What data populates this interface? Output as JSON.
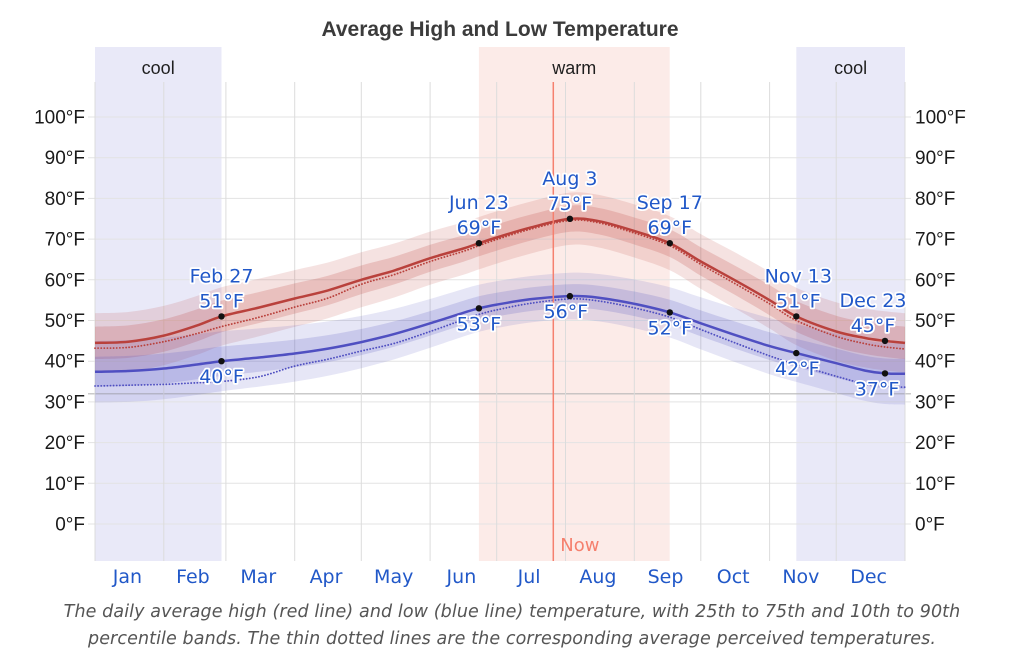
{
  "title": "Average High and Low Temperature",
  "caption": {
    "line1": "The daily average high (red line) and low (blue line) temperature, with 25th to 75th and 10th to 90th",
    "line2": "percentile bands. The thin dotted lines are the corresponding average perceived temperatures."
  },
  "chart_data": {
    "type": "line",
    "title": "Average High and Low Temperature",
    "y_axis": {
      "tick_temps": [
        0,
        10,
        20,
        30,
        40,
        50,
        60,
        70,
        80,
        90,
        100
      ],
      "unit": "°F",
      "freezing_value": 32
    },
    "x_axis": {
      "months": [
        "Jan",
        "Feb",
        "Mar",
        "Apr",
        "May",
        "Jun",
        "Jul",
        "Aug",
        "Sep",
        "Oct",
        "Nov",
        "Dec"
      ]
    },
    "days": [
      0,
      15,
      31,
      46,
      57,
      74,
      90,
      105,
      120,
      135,
      151,
      166,
      173,
      181,
      196,
      214,
      227,
      243,
      259,
      273,
      288,
      304,
      316,
      334,
      347,
      356,
      365
    ],
    "series": [
      {
        "name": "average high",
        "style": "solid",
        "color": "#b9413c",
        "values": [
          44.5,
          44.8,
          46.3,
          48.8,
          51,
          53.2,
          55.4,
          57.4,
          60,
          62.3,
          65.3,
          67.7,
          69,
          70.4,
          72.8,
          75,
          74.4,
          72,
          69,
          64.5,
          60,
          55,
          51,
          47.3,
          45.7,
          45,
          44.5
        ]
      },
      {
        "name": "average low",
        "style": "solid",
        "color": "#4f4fc1",
        "values": [
          37.4,
          37.6,
          38.2,
          39.2,
          40,
          40.9,
          41.9,
          43.1,
          44.7,
          46.7,
          49.3,
          51.9,
          53,
          53.9,
          55.2,
          56,
          55.6,
          54.1,
          52,
          49.3,
          46.5,
          43.7,
          42,
          39.5,
          37.7,
          37,
          36.9
        ]
      },
      {
        "name": "average perceived high",
        "style": "dotted",
        "color": "#b9413c",
        "values": [
          43.2,
          43.4,
          44.8,
          46.8,
          48.5,
          50.8,
          53.3,
          55.5,
          58.9,
          61.3,
          64.5,
          67,
          68.4,
          69.9,
          72.4,
          74.6,
          74,
          71.5,
          68.4,
          63.8,
          59.2,
          54.1,
          50,
          46.1,
          44.3,
          43.5,
          43
        ]
      },
      {
        "name": "average perceived low",
        "style": "dotted",
        "color": "#4f4fc1",
        "values": [
          33.9,
          34.1,
          34.3,
          34.7,
          35,
          36.2,
          38.8,
          40.5,
          42.5,
          44.4,
          47.3,
          50.2,
          51.5,
          52.6,
          54.2,
          55.3,
          54.8,
          53.1,
          50.8,
          47.8,
          44.6,
          41.3,
          39.2,
          36.3,
          34.4,
          33.8,
          33.6
        ]
      }
    ],
    "bands": {
      "description": "25th to 75th and 10th to 90th percentile bands",
      "high": {
        "inner_halfwidth_winter": 4.0,
        "inner_halfwidth_summer": 3.2,
        "outer_halfwidth_winter": 7.3,
        "outer_halfwidth_summer": 6.4,
        "color": "#c05a50"
      },
      "low": {
        "inner_halfwidth_winter": 3.7,
        "inner_halfwidth_summer": 2.9,
        "outer_halfwidth_winter": 7.6,
        "outer_halfwidth_summer": 5.7,
        "color": "#6060cc"
      }
    },
    "annotations": [
      {
        "date": "Feb 27",
        "temp": "51°F",
        "series": "high",
        "day": 57,
        "value": 51,
        "dx": 0
      },
      {
        "temp": "40°F",
        "series": "low",
        "day": 57,
        "value": 40,
        "dx": 0
      },
      {
        "date": "Jun 23",
        "temp": "69°F",
        "series": "high",
        "day": 173,
        "value": 69,
        "dx": 0
      },
      {
        "temp": "53°F",
        "series": "low",
        "day": 173,
        "value": 53,
        "dx": 0
      },
      {
        "date": "Aug 3",
        "temp": "75°F",
        "series": "high",
        "day": 214,
        "value": 75,
        "dx": 0
      },
      {
        "temp": "56°F",
        "series": "low",
        "day": 214,
        "value": 56,
        "dx": -4
      },
      {
        "date": "Sep 17",
        "temp": "69°F",
        "series": "high",
        "day": 259,
        "value": 69,
        "dx": 0
      },
      {
        "temp": "52°F",
        "series": "low",
        "day": 259,
        "value": 52,
        "dx": 0
      },
      {
        "date": "Nov 13",
        "temp": "51°F",
        "series": "high",
        "day": 316,
        "value": 51,
        "dx": 2
      },
      {
        "temp": "42°F",
        "series": "low",
        "day": 316,
        "value": 42,
        "dx": 1
      },
      {
        "date": "Dec 23",
        "temp": "45°F",
        "series": "high",
        "day": 356,
        "value": 45,
        "dx": -12
      },
      {
        "temp": "37°F",
        "series": "low",
        "day": 356,
        "value": 37,
        "dx": -8
      }
    ],
    "seasons": [
      {
        "label": "cool",
        "start_day": 0,
        "end_day": 57,
        "color": "#e9e9f8"
      },
      {
        "label": "warm",
        "start_day": 173,
        "end_day": 259,
        "color": "#fcebe8"
      },
      {
        "label": "cool",
        "start_day": 316,
        "end_day": 365,
        "color": "#e9e9f8"
      }
    ],
    "now": {
      "label": "Now",
      "day": 206.5,
      "color": "#f5806e"
    },
    "colors": {
      "annotation_text": "#2158c8",
      "month_text": "#2158c8",
      "axis_text": "#1a1a1a",
      "grid": "#e3e3e3",
      "freezing_line": "#b8b8b8",
      "title_text": "#3b3b3b",
      "caption_text": "#555555"
    }
  }
}
